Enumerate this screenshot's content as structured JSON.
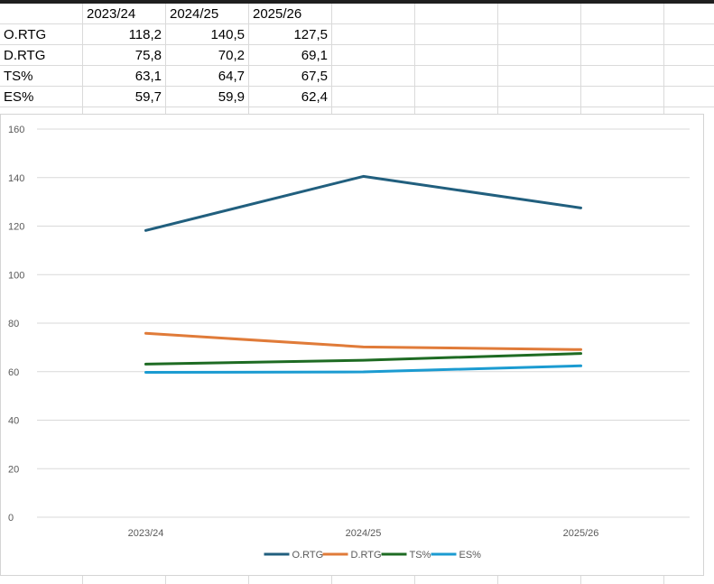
{
  "sheet": {
    "columns": [
      "",
      "2023/24",
      "2024/25",
      "2025/26"
    ],
    "rows": [
      {
        "label": "O.RTG",
        "cells": [
          "118,2",
          "140,5",
          "127,5"
        ]
      },
      {
        "label": "D.RTG",
        "cells": [
          "75,8",
          "70,2",
          "69,1"
        ]
      },
      {
        "label": "TS%",
        "cells": [
          "63,1",
          "64,7",
          "67,5"
        ]
      },
      {
        "label": "ES%",
        "cells": [
          "59,7",
          "59,9",
          "62,4"
        ]
      }
    ]
  },
  "chart_data": {
    "type": "line",
    "categories": [
      "2023/24",
      "2024/25",
      "2025/26"
    ],
    "series": [
      {
        "name": "O.RTG",
        "values": [
          118.2,
          140.5,
          127.5
        ],
        "color": "#215f7e"
      },
      {
        "name": "D.RTG",
        "values": [
          75.8,
          70.2,
          69.1
        ],
        "color": "#e07b39"
      },
      {
        "name": "TS%",
        "values": [
          63.1,
          64.7,
          67.5
        ],
        "color": "#1e6b23"
      },
      {
        "name": "ES%",
        "values": [
          59.7,
          59.9,
          62.4
        ],
        "color": "#1b9bd1"
      }
    ],
    "ylim": [
      0,
      160
    ],
    "yticks": [
      "0",
      "20",
      "40",
      "60",
      "80",
      "100",
      "120",
      "140",
      "160"
    ],
    "grid": true,
    "legend": "bottom"
  }
}
